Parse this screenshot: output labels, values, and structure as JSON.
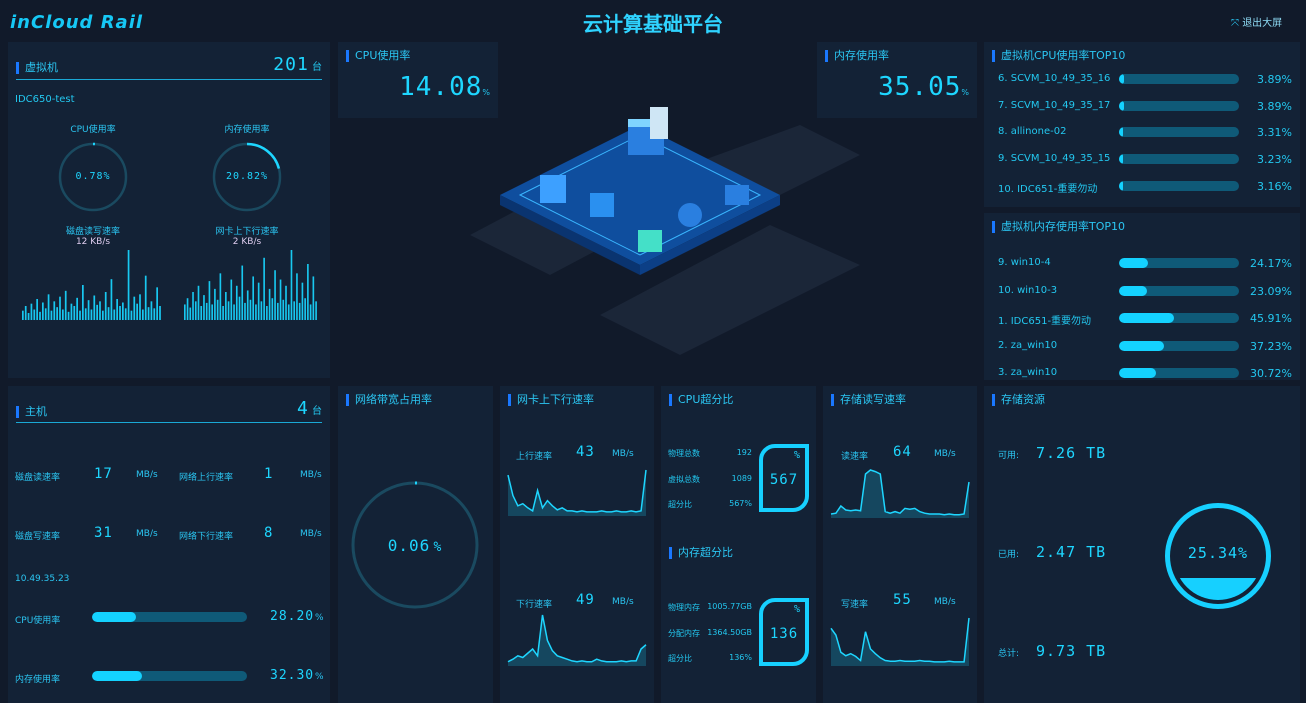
{
  "header": {
    "logo": "inCloud Rail",
    "title": "云计算基础平台",
    "exit_label": "退出大屏"
  },
  "vm": {
    "title": "虚拟机",
    "count": "201",
    "unit": "台",
    "name": "IDC650-test",
    "cpu_label": "CPU使用率",
    "cpu_value": "0.78%",
    "cpu_pct": 0.78,
    "mem_label": "内存使用率",
    "mem_value": "20.82%",
    "mem_pct": 20.82,
    "disk_label": "磁盘读写速率",
    "disk_value": "12 KB/s",
    "nic_label": "网卡上下行速率",
    "nic_value": "2 KB/s",
    "disk_series": [
      8,
      12,
      6,
      14,
      9,
      18,
      7,
      15,
      10,
      22,
      8,
      16,
      11,
      20,
      9,
      25,
      7,
      14,
      12,
      19,
      8,
      30,
      10,
      17,
      9,
      21,
      13,
      16,
      8,
      24,
      11,
      35,
      9,
      18,
      12,
      15,
      10,
      60,
      8,
      20,
      14,
      22,
      9,
      38,
      11,
      16,
      10,
      28,
      12
    ],
    "nic_series": [
      10,
      14,
      8,
      18,
      12,
      22,
      9,
      16,
      11,
      25,
      10,
      20,
      13,
      30,
      9,
      18,
      12,
      26,
      10,
      22,
      15,
      35,
      11,
      19,
      13,
      28,
      10,
      24,
      12,
      40,
      9,
      20,
      14,
      32,
      11,
      26,
      13,
      22,
      10,
      45,
      12,
      30,
      11,
      24,
      14,
      36,
      10,
      28,
      12
    ]
  },
  "cpu": {
    "title": "CPU使用率",
    "value": "14.08",
    "unit": "%"
  },
  "memory": {
    "title": "内存使用率",
    "value": "35.05",
    "unit": "%"
  },
  "cpu_top10": {
    "title": "虚拟机CPU使用率TOP10",
    "items": [
      {
        "label": "6. SCVM_10_49_35_16",
        "value": "3.89%",
        "pct": 3.89
      },
      {
        "label": "7. SCVM_10_49_35_17",
        "value": "3.89%",
        "pct": 3.89
      },
      {
        "label": "8. allinone-02",
        "value": "3.31%",
        "pct": 3.31
      },
      {
        "label": "9. SCVM_10_49_35_15",
        "value": "3.23%",
        "pct": 3.23
      },
      {
        "label": "10. IDC651-重要勿动",
        "value": "3.16%",
        "pct": 3.16
      }
    ]
  },
  "mem_top10": {
    "title": "虚拟机内存使用率TOP10",
    "items": [
      {
        "label": "9. win10-4",
        "value": "24.17%",
        "pct": 24.17
      },
      {
        "label": "10. win10-3",
        "value": "23.09%",
        "pct": 23.09
      },
      {
        "label": "1. IDC651-重要勿动",
        "value": "45.91%",
        "pct": 45.91
      },
      {
        "label": "2. za_win10",
        "value": "37.23%",
        "pct": 37.23
      },
      {
        "label": "3. za_win10",
        "value": "30.72%",
        "pct": 30.72
      }
    ]
  },
  "host": {
    "title": "主机",
    "count": "4",
    "unit": "台",
    "disk_read_label": "磁盘读速率",
    "disk_read": "17",
    "disk_write_label": "磁盘写速率",
    "disk_write": "31",
    "net_up_label": "网络上行速率",
    "net_up": "1",
    "net_down_label": "网络下行速率",
    "net_down": "8",
    "rate_unit": "MB/s",
    "ip": "10.49.35.23",
    "cpu_label": "CPU使用率",
    "cpu_value": "28.20",
    "cpu_pct": 28.2,
    "mem_label": "内存使用率",
    "mem_value": "32.30",
    "mem_pct": 32.3,
    "pct_unit": "%"
  },
  "bandwidth": {
    "title": "网络带宽占用率",
    "value": "0.06",
    "unit": "%",
    "pct": 0.06
  },
  "nic": {
    "title": "网卡上下行速率",
    "up_label": "上行速率",
    "up_value": "43",
    "down_label": "下行速率",
    "down_value": "49",
    "unit": "MB/s",
    "up_series": [
      40,
      20,
      10,
      12,
      8,
      5,
      25,
      8,
      15,
      10,
      6,
      8,
      5,
      5,
      4,
      5,
      4,
      4,
      4,
      5,
      4,
      4,
      5,
      4,
      4,
      5,
      4,
      5,
      45
    ],
    "down_series": [
      5,
      8,
      12,
      10,
      15,
      20,
      12,
      60,
      30,
      18,
      12,
      10,
      8,
      6,
      5,
      6,
      5,
      5,
      8,
      6,
      5,
      5,
      5,
      6,
      5,
      6,
      6,
      20,
      25
    ]
  },
  "cpu_over": {
    "title": "CPU超分比",
    "rows": [
      {
        "label": "物理总数",
        "value": "192"
      },
      {
        "label": "虚拟总数",
        "value": "1089"
      },
      {
        "label": "超分比",
        "value": "567%"
      }
    ],
    "big": "567",
    "unit": "%"
  },
  "mem_over": {
    "title": "内存超分比",
    "rows": [
      {
        "label": "物理内存",
        "value": "1005.77GB"
      },
      {
        "label": "分配内存",
        "value": "1364.50GB"
      },
      {
        "label": "超分比",
        "value": "136%"
      }
    ],
    "big": "136",
    "unit": "%"
  },
  "storage_rw": {
    "title": "存储读写速率",
    "read_label": "读速率",
    "read_value": "64",
    "write_label": "写速率",
    "write_value": "55",
    "unit": "MB/s",
    "read_series": [
      5,
      6,
      15,
      10,
      9,
      10,
      9,
      55,
      60,
      58,
      55,
      8,
      6,
      8,
      6,
      12,
      11,
      12,
      8,
      6,
      5,
      5,
      5,
      4,
      5,
      4,
      4,
      5,
      45
    ],
    "write_series": [
      55,
      45,
      20,
      15,
      18,
      14,
      8,
      50,
      25,
      18,
      12,
      8,
      7,
      7,
      8,
      7,
      7,
      7,
      8,
      7,
      7,
      6,
      6,
      6,
      7,
      6,
      6,
      6,
      70
    ]
  },
  "storage": {
    "title": "存储资源",
    "avail_label": "可用:",
    "avail": "7.26 TB",
    "used_label": "已用:",
    "used": "2.47 TB",
    "total_label": "总计:",
    "total": "9.73 TB",
    "pct_text": "25.34%",
    "pct": 25.34
  },
  "colors": {
    "accent": "#1ed6ff",
    "panel": "#132236",
    "bg": "#111a2a",
    "track": "#0f5a78"
  }
}
